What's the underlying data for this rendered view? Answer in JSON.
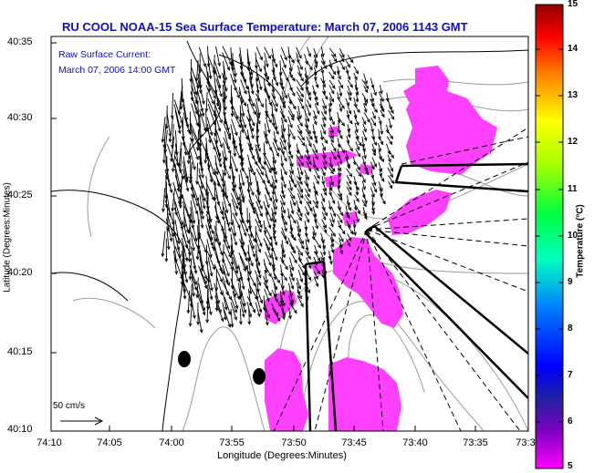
{
  "title": "RU COOL   NOAA-15  Sea Surface Temperature:  March 07, 2006 1143 GMT",
  "annotation": {
    "line1": "Raw Surface Current:",
    "line2": "March 07, 2006 14:00 GMT",
    "scale_label": "50 cm/s"
  },
  "axes": {
    "ylabel": "Latitude (Degrees:Minutes)",
    "xlabel": "Longitude (Degrees:Minutes)",
    "yticks": [
      "40:35",
      "40:30",
      "40:25",
      "40:20",
      "40:15",
      "40:10"
    ],
    "xticks": [
      "74:10",
      "74:05",
      "74:00",
      "73:55",
      "73:50",
      "73:45",
      "73:40",
      "73:35",
      "73:3"
    ]
  },
  "colorbar": {
    "label": "Temperature (°C)",
    "ticks": [
      "15",
      "14",
      "13",
      "12",
      "11",
      "10",
      "9",
      "8",
      "7",
      "6",
      "5"
    ],
    "range": [
      5,
      15
    ]
  },
  "colors": {
    "title": "#1010c8",
    "sst_patch": "#ff40ff",
    "vectors": "#000000"
  }
}
